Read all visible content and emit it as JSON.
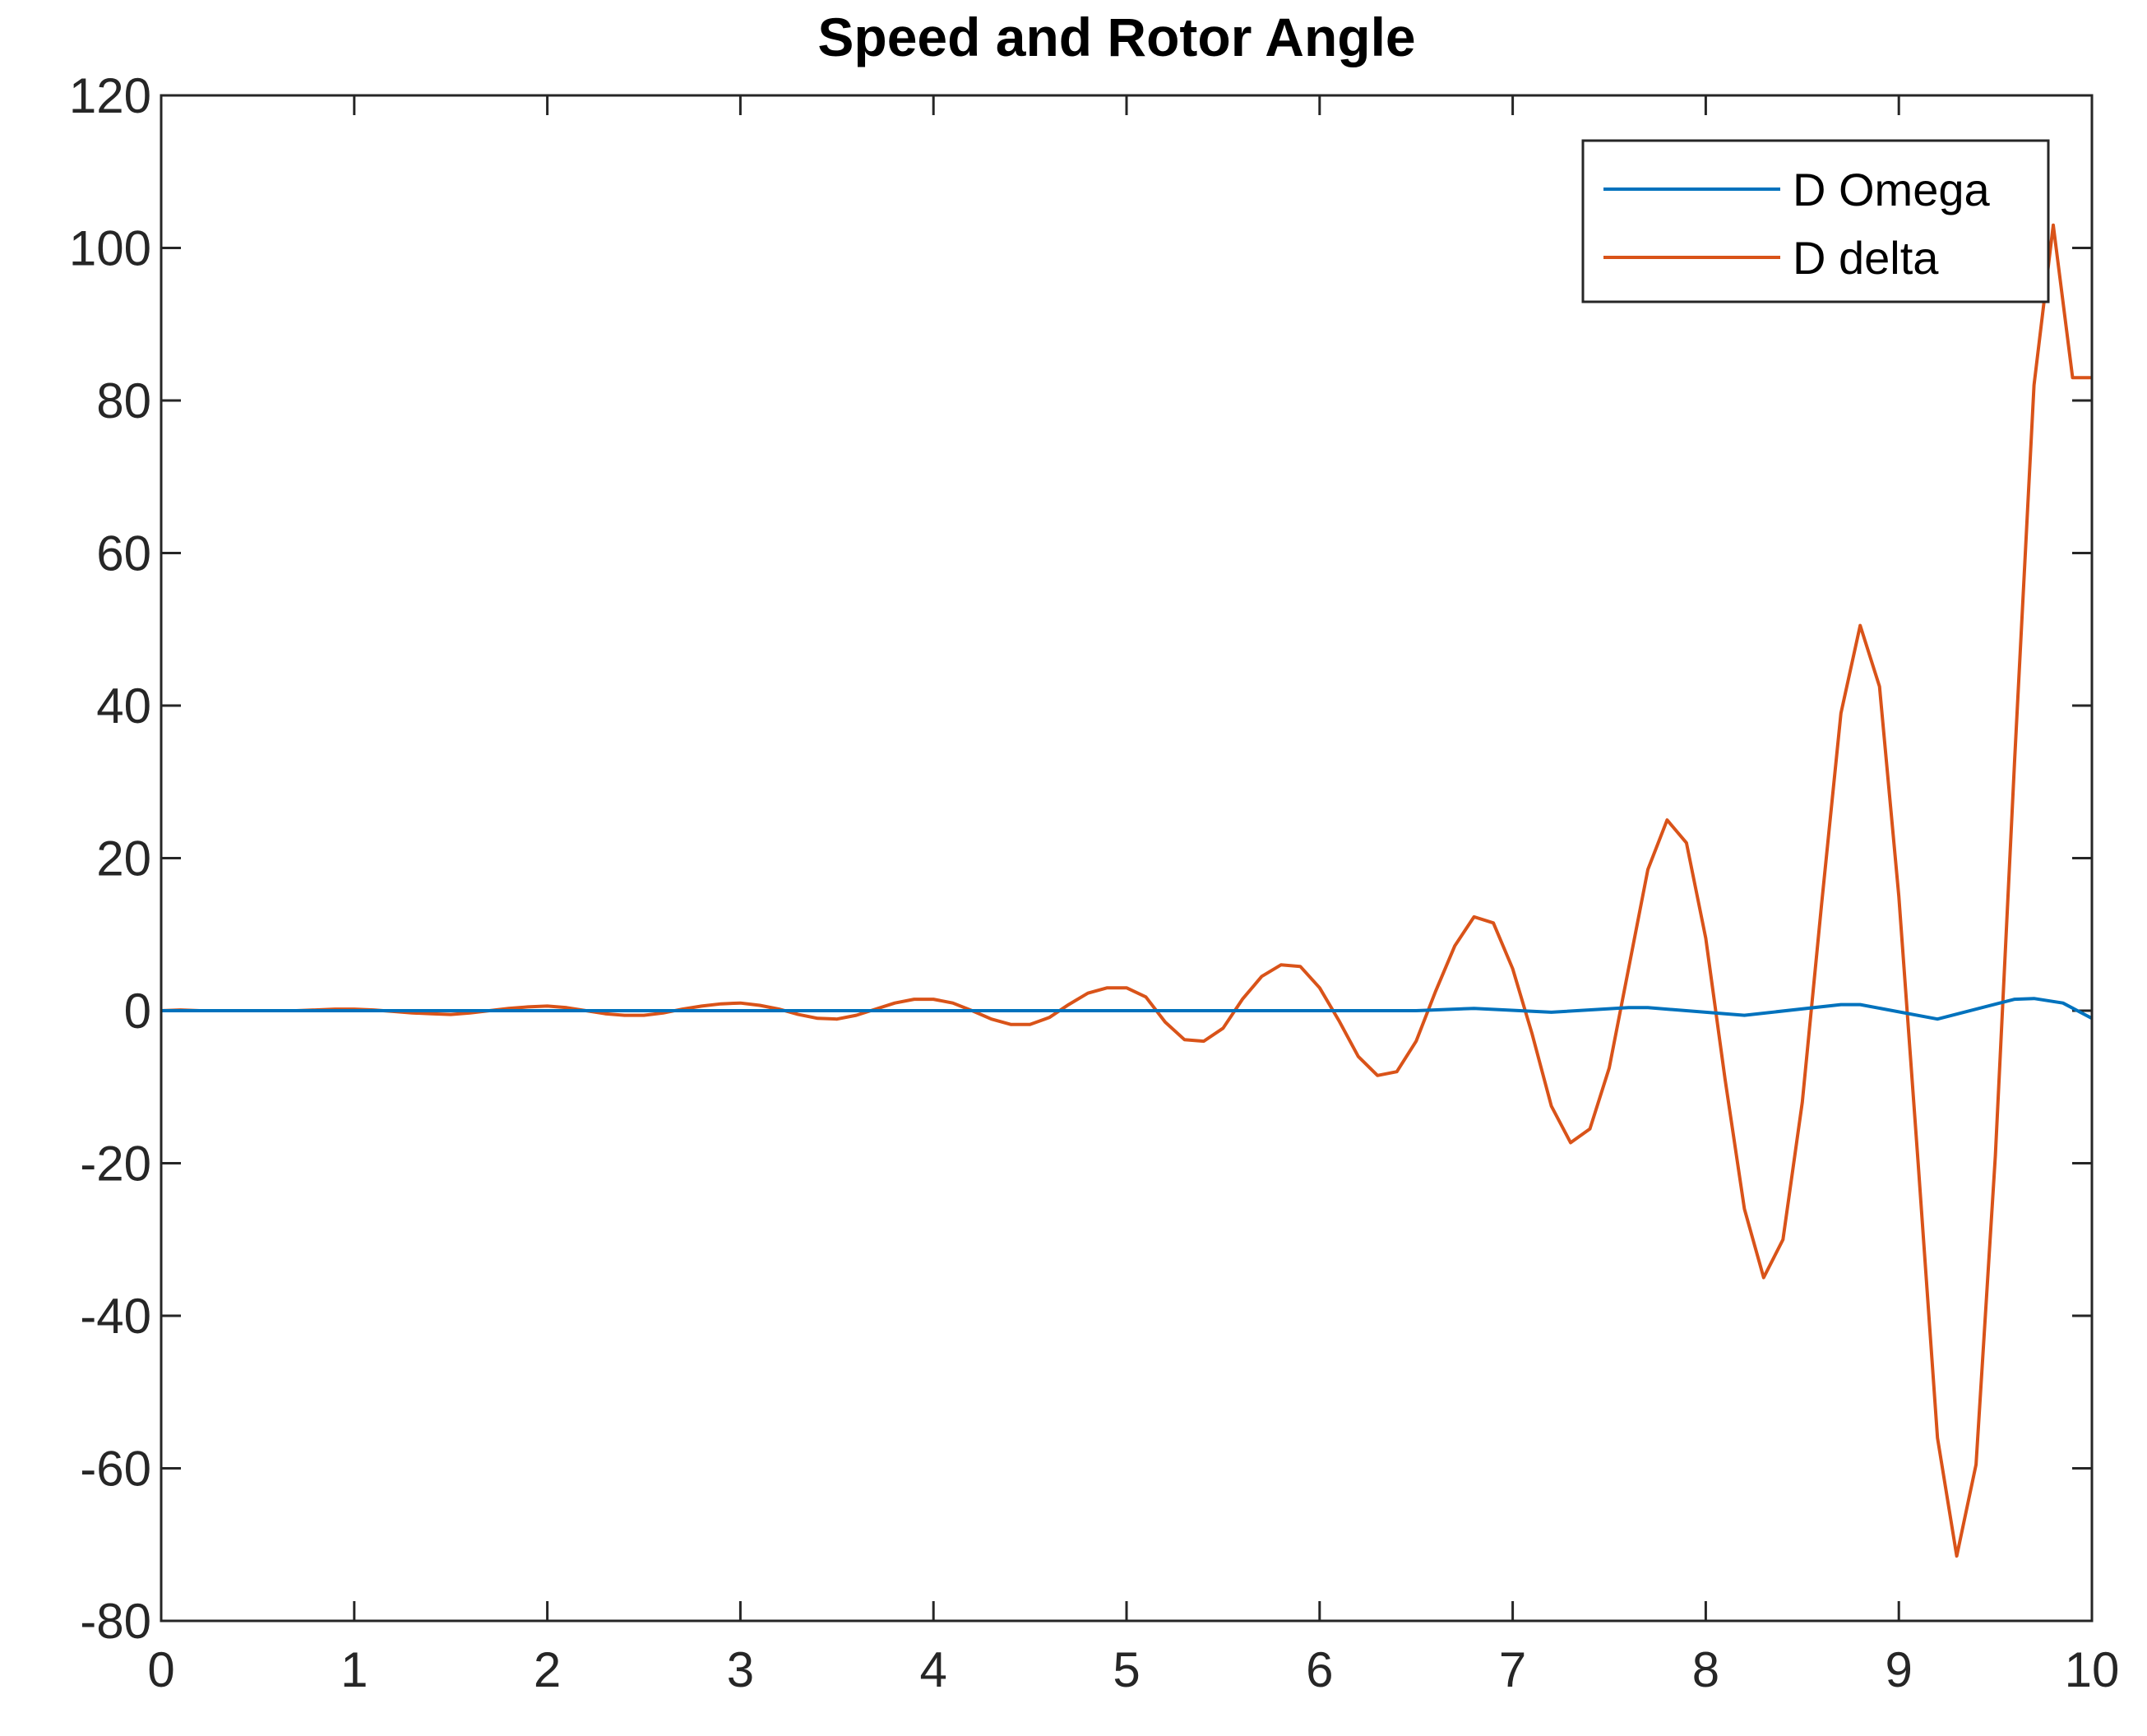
{
  "chart_data": {
    "type": "line",
    "title": "Speed  and Rotor Angle",
    "xlabel": "",
    "ylabel": "",
    "xlim": [
      0,
      10
    ],
    "ylim": [
      -80,
      120
    ],
    "xticks": [
      0,
      1,
      2,
      3,
      4,
      5,
      6,
      7,
      8,
      9,
      10
    ],
    "yticks": [
      -80,
      -60,
      -40,
      -20,
      0,
      20,
      40,
      60,
      80,
      100,
      120
    ],
    "grid": false,
    "legend_position": "top-right",
    "series": [
      {
        "name": "D Omega",
        "color": "#0072BD",
        "x": [
          0,
          0.5,
          1,
          1.5,
          2,
          2.5,
          3,
          3.5,
          4,
          4.5,
          5,
          5.5,
          6,
          6.5,
          6.8,
          7.2,
          7.6,
          7.7,
          8.2,
          8.7,
          8.8,
          9.2,
          9.6,
          9.7,
          9.85,
          10
        ],
        "y": [
          0,
          0,
          0,
          0,
          0,
          0,
          0,
          0,
          0,
          0,
          0,
          0,
          0,
          0,
          0.3,
          -0.2,
          0.4,
          0.4,
          -0.6,
          0.8,
          0.8,
          -1.1,
          1.5,
          1.6,
          1.0,
          -1.0
        ]
      },
      {
        "name": "D delta",
        "color": "#D95319",
        "x": [
          0,
          0.1,
          0.2,
          0.3,
          0.4,
          0.5,
          0.6,
          0.7,
          0.8,
          0.9,
          1.0,
          1.1,
          1.2,
          1.3,
          1.4,
          1.5,
          1.6,
          1.7,
          1.8,
          1.9,
          2.0,
          2.1,
          2.2,
          2.3,
          2.4,
          2.5,
          2.6,
          2.7,
          2.8,
          2.9,
          3.0,
          3.1,
          3.2,
          3.3,
          3.4,
          3.5,
          3.6,
          3.7,
          3.8,
          3.9,
          4.0,
          4.1,
          4.2,
          4.3,
          4.4,
          4.5,
          4.6,
          4.7,
          4.8,
          4.9,
          5.0,
          5.1,
          5.2,
          5.3,
          5.4,
          5.5,
          5.6,
          5.7,
          5.8,
          5.9,
          6.0,
          6.1,
          6.2,
          6.3,
          6.4,
          6.5,
          6.6,
          6.7,
          6.8,
          6.9,
          7.0,
          7.1,
          7.2,
          7.3,
          7.4,
          7.5,
          7.6,
          7.7,
          7.8,
          7.9,
          8.0,
          8.1,
          8.2,
          8.3,
          8.4,
          8.5,
          8.6,
          8.7,
          8.8,
          8.9,
          9.0,
          9.1,
          9.2,
          9.3,
          9.4,
          9.5,
          9.6,
          9.7,
          9.8,
          9.9,
          10.0
        ],
        "y": [
          0,
          0.1,
          0,
          0,
          0,
          0,
          0,
          0,
          0.1,
          0.2,
          0.2,
          0.1,
          -0.1,
          -0.3,
          -0.4,
          -0.5,
          -0.3,
          0,
          0.3,
          0.5,
          0.6,
          0.4,
          0,
          -0.4,
          -0.6,
          -0.6,
          -0.3,
          0.2,
          0.6,
          0.9,
          1.0,
          0.7,
          0.2,
          -0.5,
          -1.0,
          -1.1,
          -0.6,
          0.2,
          1.0,
          1.5,
          1.5,
          1.0,
          0,
          -1.1,
          -1.8,
          -1.8,
          -0.9,
          0.8,
          2.3,
          3.0,
          3.0,
          1.8,
          -1.5,
          -3.8,
          -4.0,
          -2.3,
          1.5,
          4.5,
          6.0,
          5.8,
          3.0,
          -1.3,
          -6.0,
          -8.5,
          -8.0,
          -4.0,
          2.5,
          8.5,
          12.3,
          11.5,
          5.5,
          -3.0,
          -12.5,
          -17.3,
          -15.5,
          -7.5,
          5.5,
          18.5,
          25.0,
          22.0,
          9.5,
          -9.0,
          -26.0,
          -35.0,
          -30.0,
          -12.0,
          14.0,
          39.0,
          50.5,
          42.5,
          15.0,
          -20.0,
          -56.0,
          -71.5,
          -59.5,
          -19.0,
          33.0,
          82.0,
          103.0,
          83.0,
          83.0
        ]
      }
    ]
  }
}
